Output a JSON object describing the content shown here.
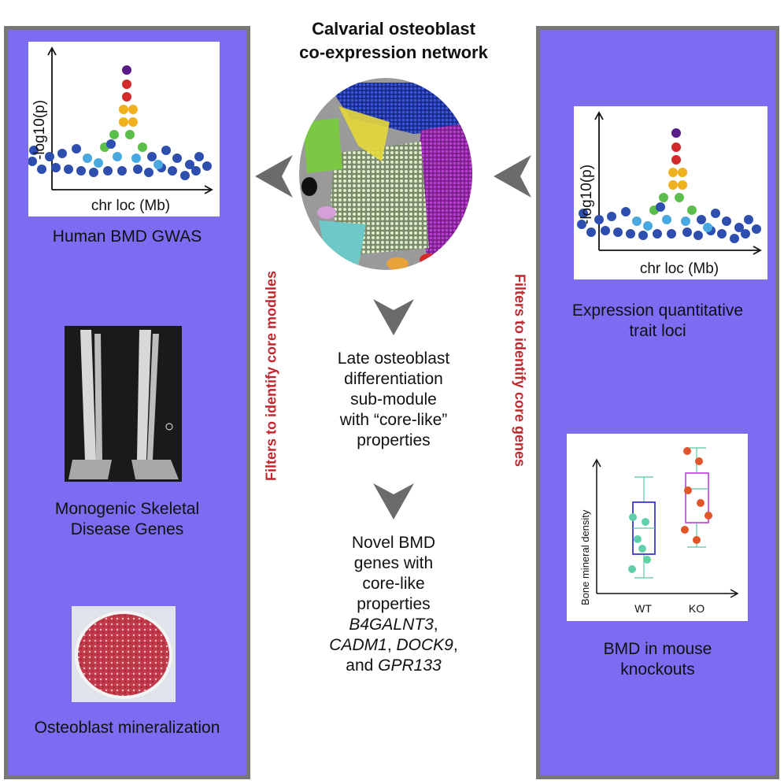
{
  "title": {
    "line1": "Calvarial osteoblast",
    "line2": "co-expression network"
  },
  "left": {
    "gwas_label": "Human BMD GWAS",
    "gwas_ylabel": "-log10(p)",
    "gwas_xlabel": "chr loc (Mb)",
    "disease_label_1": "Monogenic Skeletal",
    "disease_label_2": "Disease Genes",
    "mineral_label": "Osteoblast mineralization"
  },
  "right": {
    "eqtl_ylabel": "-log10(p)",
    "eqtl_xlabel": "chr loc (Mb)",
    "eqtl_label_1": "Expression quantitative",
    "eqtl_label_2": "trait loci",
    "box_ylabel": "Bone mineral density",
    "box_cat_wt": "WT",
    "box_cat_ko": "KO",
    "knockout_label_1": "BMD in mouse",
    "knockout_label_2": "knockouts"
  },
  "filters": {
    "modules": "Filters to identify core modules",
    "genes": "Filters to identify core genes"
  },
  "middle": {
    "step1": [
      "Late osteoblast",
      "differentiation",
      "sub-module",
      "with “core-like”",
      "properties"
    ],
    "step2_lines": [
      "Novel BMD",
      "genes with",
      "core-like",
      "properties"
    ],
    "gene1": "B4GALNT3",
    "gene2": "CADM1",
    "gene3": "DOCK9",
    "and_word": "and",
    "gene4": "GPR133",
    "comma": ","
  },
  "colors": {
    "panel": "#7b6cf2",
    "border": "#777777",
    "filter_text": "#c0272d",
    "arrow": "#6b6b6b",
    "purple_top": "#5b1a8a",
    "red": "#d12a2a",
    "orange": "#f0b020",
    "green": "#5cbf4a",
    "lightblue": "#4aa8e0",
    "darkblue": "#2d4fb0"
  },
  "icons": [
    "arrow-left-icon",
    "arrow-down-icon"
  ]
}
